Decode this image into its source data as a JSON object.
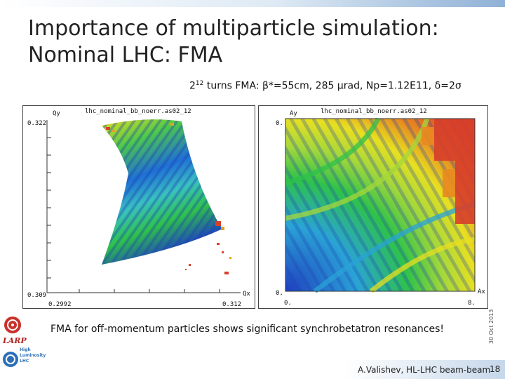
{
  "title_line1": "Importance of multiparticle simulation:",
  "title_line2": "Nominal LHC: FMA",
  "subtitle": {
    "base": "2",
    "exp": "12",
    "text": " turns FMA: β*=55cm, 285 μrad, Np=1.12E11, δ=2σ"
  },
  "plot_left": {
    "title": "lhc_nominal_bb_noerr.as02_12",
    "ylabel": "Qy",
    "xlabel": "Qx",
    "y_top": "0.322",
    "y_bottom": "0.309",
    "x_left": "0.2992",
    "x_right": "0.312"
  },
  "plot_right": {
    "title": "lhc_nominal_bb_noerr.as02_12",
    "ylabel": "Ay",
    "xlabel": "Ax",
    "y_top": "0.",
    "y_bottom": "0.",
    "x_left": "0.",
    "x_right": "8."
  },
  "caption": "FMA for off-momentum particles shows significant synchrobetatron resonances!",
  "side_date": "30 Oct 2013",
  "footer": "A.Valishev, HL-LHC beam-beam",
  "page_number": "18",
  "logos": {
    "larp": "LARP",
    "hilumi": [
      "High",
      "Luminosity",
      "LHC"
    ]
  },
  "colors": {
    "fma_low": "#1f3fbf",
    "fma_mid": "#2ec24a",
    "fma_high": "#e8e020",
    "fma_peak": "#d8402a",
    "accent": "#8fb1d6"
  }
}
